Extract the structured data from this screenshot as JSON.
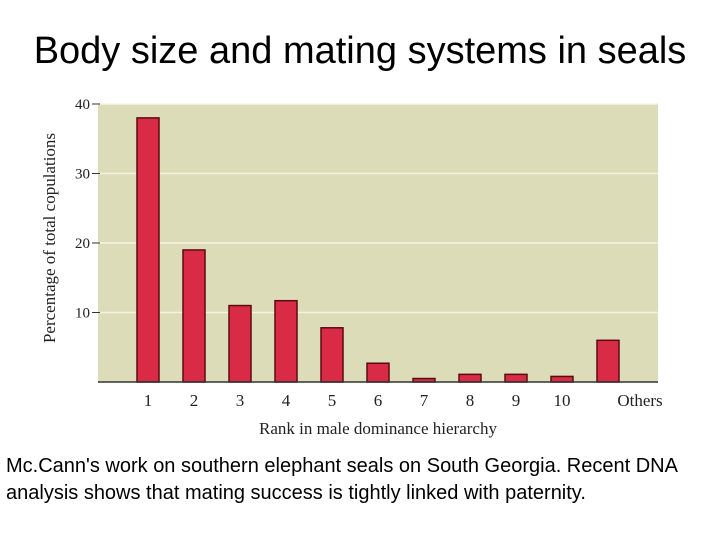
{
  "slide": {
    "title": "Body size and mating systems in seals",
    "caption": "Mc.Cann's work on southern elephant seals on South Georgia. Recent DNA analysis shows that mating success is tightly linked with paternity."
  },
  "colors": {
    "plot_background": "#dcdcb8",
    "bar_fill": "#d92a46",
    "bar_stroke": "#5a0a14"
  },
  "chart_data": {
    "type": "bar",
    "title": "",
    "xlabel": "Rank in male dominance hierarchy",
    "ylabel": "Percentage of total copulations",
    "categories": [
      "1",
      "2",
      "3",
      "4",
      "5",
      "6",
      "7",
      "8",
      "9",
      "10",
      "Others"
    ],
    "values": [
      38,
      19,
      11,
      11.7,
      7.8,
      2.7,
      0.5,
      1.1,
      1.1,
      0.8,
      6
    ],
    "ylim": [
      0,
      40
    ],
    "yticks": [
      10,
      20,
      30,
      40
    ],
    "grid": true
  }
}
